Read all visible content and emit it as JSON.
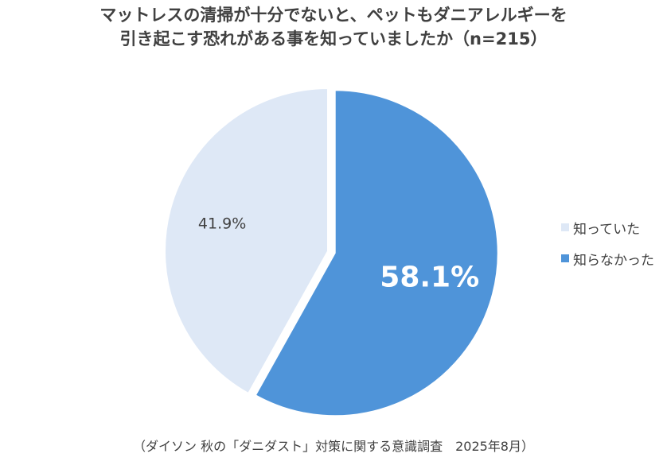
{
  "chart_data": {
    "type": "pie",
    "title_lines": [
      "マットレスの清掃が十分でないと、ペットもダニアレルギーを",
      "引き起こす恐れがある事を知っていましたか（n=215）"
    ],
    "slices": [
      {
        "label": "知っていた",
        "value": 41.9,
        "value_label": "41.9%",
        "color": "#dee8f6"
      },
      {
        "label": "知らなかった",
        "value": 58.1,
        "value_label": "58.1%",
        "color": "#4f94d9"
      }
    ],
    "legend_placement": "right",
    "source": "（ダイソン 秋の「ダニダスト」対策に関する意識調査　2025年8月）"
  }
}
